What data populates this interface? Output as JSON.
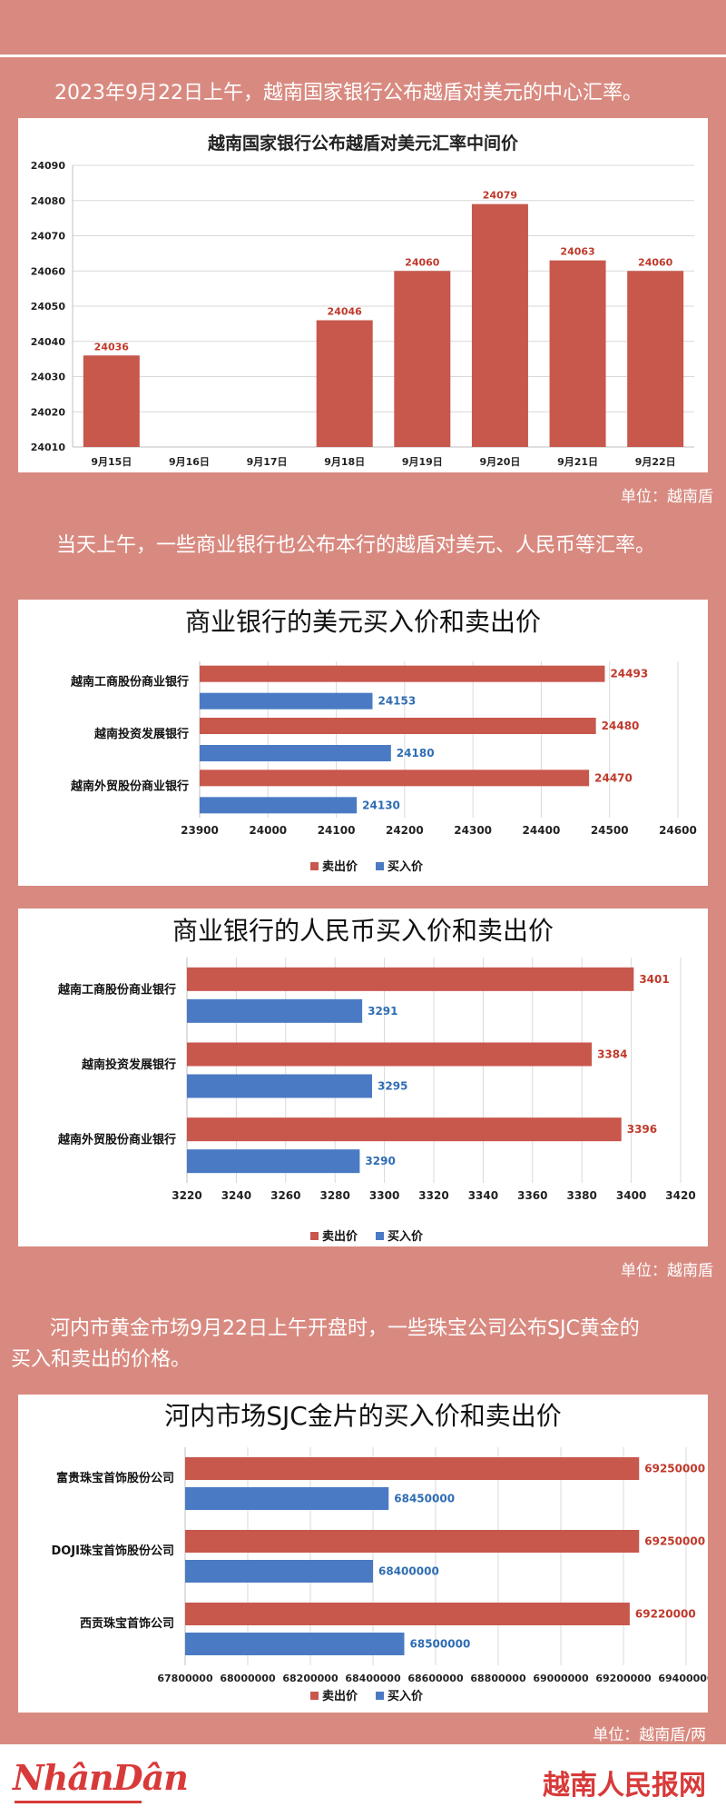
{
  "intro1": "2023年9月22日上午，越南国家银行公布越盾对美元的中心汇率。",
  "intro2": "当天上午，一些商业银行也公布本行的越盾对美元、人民币等汇率。",
  "intro3_line1": "河内市黄金市场9月22日上午开盘时，一些珠宝公司公布SJC黄金的",
  "intro3_line2": "买入和卖出的价格。",
  "unit1": "单位：越南盾",
  "unit2": "单位：越南盾",
  "unit3": "单位：越南盾/两",
  "footer": {
    "logo": "NhânDân",
    "site": "越南人民报网"
  },
  "colors": {
    "sell": "#c8574c",
    "buy": "#4a7ac3",
    "background": "#d98a80",
    "sell_label": "#c0392b",
    "buy_label": "#2e6db4"
  },
  "chart_data": [
    {
      "type": "bar",
      "title": "越南国家银行公布越盾对美元汇率中间价",
      "categories": [
        "9月15日",
        "9月16日",
        "9月17日",
        "9月18日",
        "9月19日",
        "9月20日",
        "9月21日",
        "9月22日"
      ],
      "values": [
        24036,
        null,
        null,
        24046,
        24060,
        24079,
        24063,
        24060
      ],
      "data_labels": [
        "24036",
        "",
        "",
        "24046",
        "24060",
        "24079",
        "24063",
        "24060"
      ],
      "ylim": [
        24010,
        24090
      ],
      "yticks": [
        "24010",
        "24020",
        "24030",
        "24040",
        "24050",
        "24060",
        "24070",
        "24080",
        "24090"
      ],
      "grid": true
    },
    {
      "type": "bar",
      "orientation": "horizontal",
      "title": "商业银行的美元买入价和卖出价",
      "categories": [
        "越南工商股份商业银行",
        "越南投资发展银行",
        "越南外贸股份商业银行"
      ],
      "series": [
        {
          "name": "卖出价",
          "values": [
            24493,
            24480,
            24470
          ],
          "labels": [
            "24493",
            "24480",
            "24470"
          ]
        },
        {
          "name": "买入价",
          "values": [
            24153,
            24180,
            24130
          ],
          "labels": [
            "24153",
            "24180",
            "24130"
          ]
        }
      ],
      "xlim": [
        23900,
        24600
      ],
      "xticks": [
        "23900",
        "24000",
        "24100",
        "24200",
        "24300",
        "24400",
        "24500",
        "24600"
      ],
      "grid": true,
      "legend": "bottom"
    },
    {
      "type": "bar",
      "orientation": "horizontal",
      "title": "商业银行的人民币买入价和卖出价",
      "categories": [
        "越南工商股份商业银行",
        "越南投资发展银行",
        "越南外贸股份商业银行"
      ],
      "series": [
        {
          "name": "卖出价",
          "values": [
            3401,
            3384,
            3396
          ],
          "labels": [
            "3401",
            "3384",
            "3396"
          ]
        },
        {
          "name": "买入价",
          "values": [
            3291,
            3295,
            3290
          ],
          "labels": [
            "3291",
            "3295",
            "3290"
          ]
        }
      ],
      "xlim": [
        3220,
        3420
      ],
      "xticks": [
        "3220",
        "3240",
        "3260",
        "3280",
        "3300",
        "3320",
        "3340",
        "3360",
        "3380",
        "3400",
        "3420"
      ],
      "grid": true,
      "legend": "bottom"
    },
    {
      "type": "bar",
      "orientation": "horizontal",
      "title": "河内市场SJC金片的买入价和卖出价",
      "categories": [
        "富贵珠宝首饰股份公司",
        "DOJI珠宝首饰股份公司",
        "西贡珠宝首饰公司"
      ],
      "series": [
        {
          "name": "卖出价",
          "values": [
            69250000,
            69250000,
            69220000
          ],
          "labels": [
            "69250000",
            "69250000",
            "69220000"
          ]
        },
        {
          "name": "买入价",
          "values": [
            68450000,
            68400000,
            68500000
          ],
          "labels": [
            "68450000",
            "68400000",
            "68500000"
          ]
        }
      ],
      "xlim": [
        67800000,
        69400000
      ],
      "xticks": [
        "67800000",
        "68000000",
        "68200000",
        "68400000",
        "68600000",
        "68800000",
        "69000000",
        "69200000",
        "69400000"
      ],
      "grid": true,
      "legend": "bottom"
    }
  ]
}
